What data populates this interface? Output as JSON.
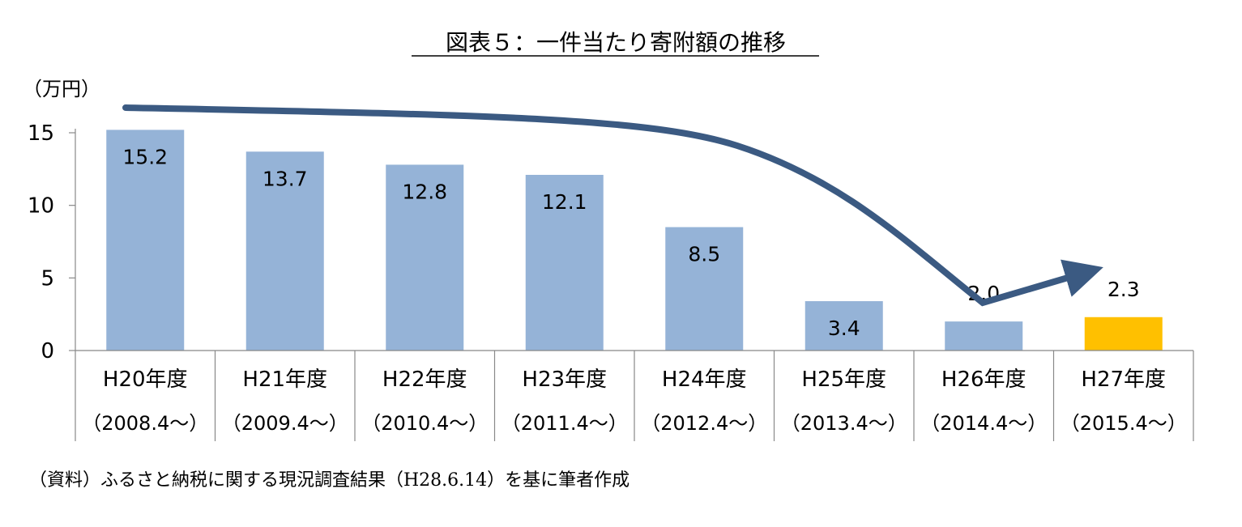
{
  "chart_data": {
    "type": "bar",
    "title": "図表５：一件当たり寄附額の推移",
    "ylabel": "（万円）",
    "ylim": [
      0,
      15
    ],
    "yticks": [
      0,
      5,
      10,
      15
    ],
    "categories": [
      "H20年度",
      "H21年度",
      "H22年度",
      "H23年度",
      "H24年度",
      "H25年度",
      "H26年度",
      "H27年度"
    ],
    "category_periods": [
      "（2008.4～）",
      "（2009.4～）",
      "（2010.4～）",
      "（2011.4～）",
      "（2012.4～）",
      "（2013.4～）",
      "（2014.4～）",
      "（2015.4～）"
    ],
    "values": [
      15.2,
      13.7,
      12.8,
      12.1,
      8.5,
      3.4,
      2.0,
      2.3
    ],
    "value_labels": [
      "15.2",
      "13.7",
      "12.8",
      "12.1",
      "8.5",
      "3.4",
      "2.0",
      "2.3"
    ],
    "bar_colors": [
      "#95b3d7",
      "#95b3d7",
      "#95b3d7",
      "#95b3d7",
      "#95b3d7",
      "#95b3d7",
      "#95b3d7",
      "#ffc000"
    ],
    "trend_arrow_color": "#3b5a82",
    "source": "（資料）ふるさと納税に関する現況調査結果（H28.6.14）を基に筆者作成"
  }
}
